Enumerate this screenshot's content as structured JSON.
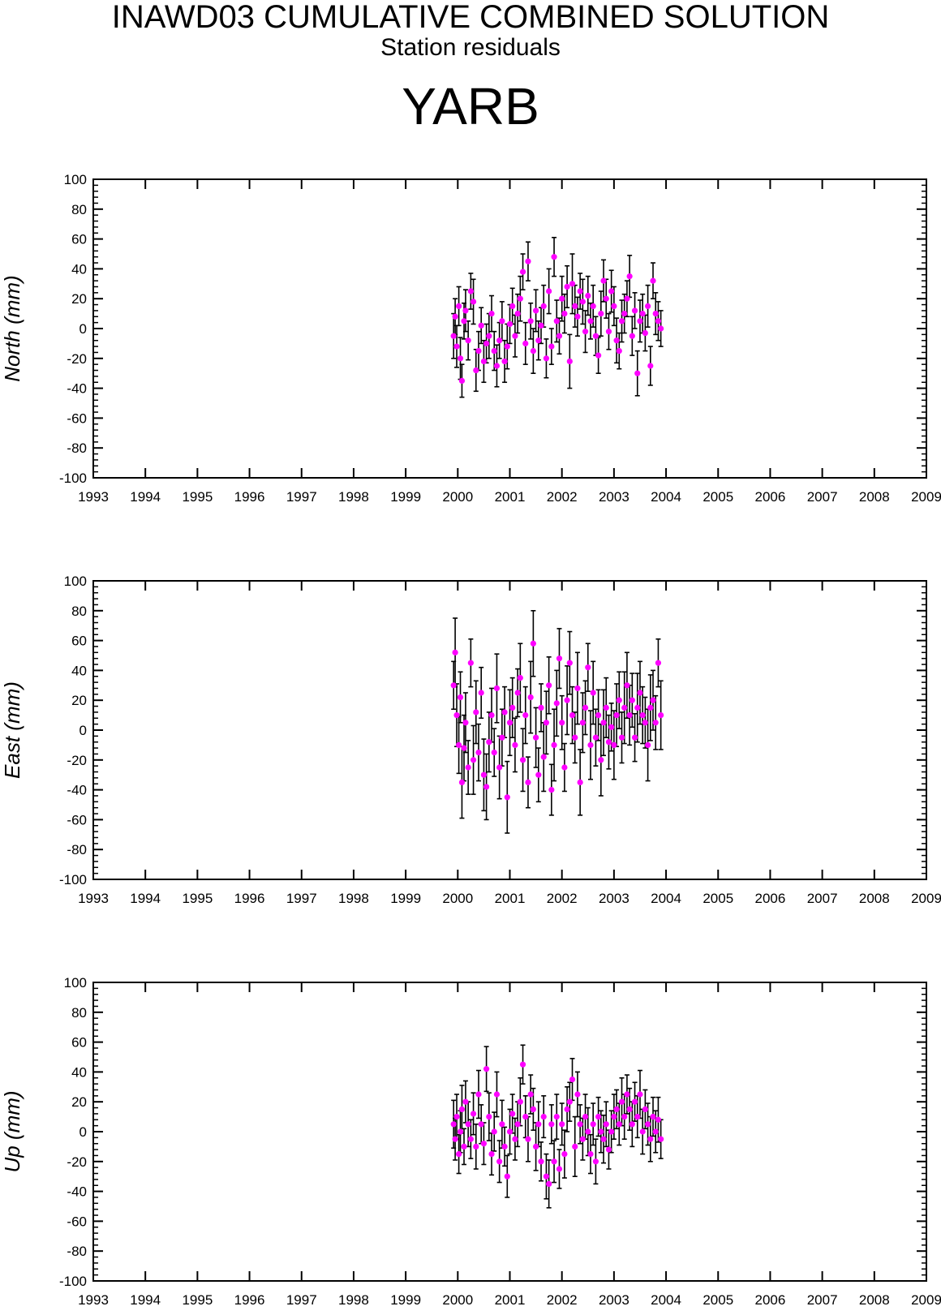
{
  "header": {
    "title": "INAWD03 CUMULATIVE COMBINED SOLUTION",
    "subtitle": "Station residuals",
    "station": "YARB"
  },
  "colors": {
    "point": "#ff00ff",
    "errorbar": "#000000",
    "axis": "#000000"
  },
  "chart_data": [
    {
      "type": "scatter",
      "ylabel": "North (mm)",
      "xlim": [
        1993,
        2009
      ],
      "ylim": [
        -100,
        100
      ],
      "xticks": [
        1993,
        1994,
        1995,
        1996,
        1997,
        1998,
        1999,
        2000,
        2001,
        2002,
        2003,
        2004,
        2005,
        2006,
        2007,
        2008,
        2009
      ],
      "yticks": [
        -100,
        -80,
        -60,
        -40,
        -20,
        0,
        20,
        40,
        60,
        80,
        100
      ],
      "grid": false,
      "series": [
        {
          "x": [
            1999.92,
            1999.95,
            1999.98,
            2000.02,
            2000.05,
            2000.08,
            2000.12,
            2000.15,
            2000.2,
            2000.25,
            2000.3,
            2000.35,
            2000.4,
            2000.45,
            2000.5,
            2000.55,
            2000.6,
            2000.65,
            2000.7,
            2000.75,
            2000.8,
            2000.85,
            2000.9,
            2000.95,
            2001.0,
            2001.05,
            2001.1,
            2001.15,
            2001.2,
            2001.25,
            2001.3,
            2001.35,
            2001.4,
            2001.45,
            2001.5,
            2001.55,
            2001.6,
            2001.65,
            2001.7,
            2001.75,
            2001.8,
            2001.85,
            2001.9,
            2001.95,
            2002.0,
            2002.05,
            2002.1,
            2002.15,
            2002.2,
            2002.25,
            2002.3,
            2002.35,
            2002.4,
            2002.45,
            2002.5,
            2002.55,
            2002.6,
            2002.65,
            2002.7,
            2002.75,
            2002.8,
            2002.85,
            2002.9,
            2002.95,
            2003.0,
            2003.05,
            2003.1,
            2003.15,
            2003.2,
            2003.25,
            2003.3,
            2003.35,
            2003.4,
            2003.45,
            2003.5,
            2003.55,
            2003.6,
            2003.65,
            2003.7,
            2003.75,
            2003.8,
            2003.85,
            2003.9
          ],
          "y": [
            -5,
            8,
            -12,
            15,
            -20,
            -35,
            5,
            12,
            -8,
            25,
            18,
            -28,
            -15,
            2,
            -22,
            -10,
            -5,
            10,
            -15,
            -25,
            -8,
            5,
            -22,
            -12,
            3,
            15,
            -5,
            10,
            20,
            38,
            -10,
            45,
            5,
            -15,
            12,
            -8,
            2,
            15,
            -20,
            25,
            -12,
            48,
            5,
            -5,
            20,
            10,
            28,
            -22,
            30,
            15,
            8,
            25,
            18,
            -2,
            22,
            5,
            15,
            -5,
            -18,
            10,
            32,
            20,
            -2,
            25,
            15,
            -8,
            -15,
            5,
            10,
            20,
            35,
            -5,
            12,
            -30,
            5,
            10,
            -3,
            15,
            -25,
            32,
            10,
            5,
            0
          ],
          "err": [
            15,
            12,
            14,
            13,
            14,
            11,
            12,
            14,
            13,
            12,
            15,
            14,
            13,
            12,
            14,
            13,
            15,
            12,
            13,
            14,
            12,
            13,
            14,
            15,
            13,
            12,
            14,
            13,
            15,
            12,
            14,
            13,
            12,
            15,
            14,
            13,
            12,
            14,
            13,
            15,
            12,
            13,
            14,
            12,
            15,
            13,
            14,
            18,
            20,
            14,
            13,
            12,
            15,
            14,
            13,
            12,
            14,
            13,
            12,
            15,
            14,
            13,
            12,
            14,
            13,
            15,
            12,
            14,
            13,
            12,
            14,
            13,
            12,
            15,
            14,
            13,
            12,
            14,
            13,
            12,
            14,
            13,
            12
          ]
        }
      ]
    },
    {
      "type": "scatter",
      "ylabel": "East (mm)",
      "xlim": [
        1993,
        2009
      ],
      "ylim": [
        -100,
        100
      ],
      "xticks": [
        1993,
        1994,
        1995,
        1996,
        1997,
        1998,
        1999,
        2000,
        2001,
        2002,
        2003,
        2004,
        2005,
        2006,
        2007,
        2008,
        2009
      ],
      "yticks": [
        -100,
        -80,
        -60,
        -40,
        -20,
        0,
        20,
        40,
        60,
        80,
        100
      ],
      "grid": false,
      "series": [
        {
          "x": [
            1999.92,
            1999.95,
            1999.98,
            2000.02,
            2000.05,
            2000.08,
            2000.12,
            2000.15,
            2000.2,
            2000.25,
            2000.3,
            2000.35,
            2000.4,
            2000.45,
            2000.5,
            2000.55,
            2000.6,
            2000.65,
            2000.7,
            2000.75,
            2000.8,
            2000.85,
            2000.9,
            2000.95,
            2001.0,
            2001.05,
            2001.1,
            2001.15,
            2001.2,
            2001.25,
            2001.3,
            2001.35,
            2001.4,
            2001.45,
            2001.5,
            2001.55,
            2001.6,
            2001.65,
            2001.7,
            2001.75,
            2001.8,
            2001.85,
            2001.9,
            2001.95,
            2002.0,
            2002.05,
            2002.1,
            2002.15,
            2002.2,
            2002.25,
            2002.3,
            2002.35,
            2002.4,
            2002.45,
            2002.5,
            2002.55,
            2002.6,
            2002.65,
            2002.7,
            2002.75,
            2002.8,
            2002.85,
            2002.9,
            2002.95,
            2003.0,
            2003.05,
            2003.1,
            2003.15,
            2003.2,
            2003.25,
            2003.3,
            2003.35,
            2003.4,
            2003.45,
            2003.5,
            2003.55,
            2003.6,
            2003.65,
            2003.7,
            2003.75,
            2003.8,
            2003.85,
            2003.9
          ],
          "y": [
            30,
            52,
            10,
            -10,
            22,
            -35,
            -12,
            5,
            -25,
            45,
            -20,
            12,
            -15,
            25,
            -30,
            -38,
            -8,
            10,
            -15,
            28,
            -25,
            -5,
            12,
            -45,
            5,
            15,
            -10,
            25,
            35,
            -20,
            10,
            -35,
            22,
            58,
            -5,
            -30,
            15,
            -18,
            5,
            30,
            -40,
            -10,
            18,
            48,
            5,
            -25,
            20,
            45,
            10,
            -5,
            28,
            -35,
            5,
            15,
            42,
            -10,
            25,
            -5,
            10,
            -20,
            5,
            15,
            -8,
            2,
            -10,
            10,
            20,
            -5,
            15,
            30,
            10,
            20,
            -5,
            15,
            25,
            10,
            5,
            -10,
            15,
            20,
            5,
            45,
            10
          ]
        }
      ]
    },
    {
      "type": "scatter",
      "ylabel": "Up (mm)",
      "xlim": [
        1993,
        2009
      ],
      "ylim": [
        -100,
        100
      ],
      "xticks": [
        1993,
        1994,
        1995,
        1996,
        1997,
        1998,
        1999,
        2000,
        2001,
        2002,
        2003,
        2004,
        2005,
        2006,
        2007,
        2008,
        2009
      ],
      "yticks": [
        -100,
        -80,
        -60,
        -40,
        -20,
        0,
        20,
        40,
        60,
        80,
        100
      ],
      "grid": false,
      "series": [
        {
          "x": [
            1999.92,
            1999.95,
            1999.98,
            2000.02,
            2000.05,
            2000.08,
            2000.12,
            2000.15,
            2000.2,
            2000.25,
            2000.3,
            2000.35,
            2000.4,
            2000.45,
            2000.5,
            2000.55,
            2000.6,
            2000.65,
            2000.7,
            2000.75,
            2000.8,
            2000.85,
            2000.9,
            2000.95,
            2001.0,
            2001.05,
            2001.1,
            2001.15,
            2001.2,
            2001.25,
            2001.3,
            2001.35,
            2001.4,
            2001.45,
            2001.5,
            2001.55,
            2001.6,
            2001.65,
            2001.7,
            2001.75,
            2001.8,
            2001.85,
            2001.9,
            2001.95,
            2002.0,
            2002.05,
            2002.1,
            2002.15,
            2002.2,
            2002.25,
            2002.3,
            2002.35,
            2002.4,
            2002.45,
            2002.5,
            2002.55,
            2002.6,
            2002.65,
            2002.7,
            2002.75,
            2002.8,
            2002.85,
            2002.9,
            2002.95,
            2003.0,
            2003.05,
            2003.1,
            2003.15,
            2003.2,
            2003.25,
            2003.3,
            2003.35,
            2003.4,
            2003.45,
            2003.5,
            2003.55,
            2003.6,
            2003.65,
            2003.7,
            2003.75,
            2003.8,
            2003.85,
            2003.9
          ],
          "y": [
            5,
            -5,
            10,
            -15,
            0,
            15,
            -10,
            20,
            5,
            -5,
            12,
            -10,
            25,
            5,
            -8,
            42,
            10,
            -15,
            0,
            25,
            -20,
            5,
            -10,
            -30,
            0,
            12,
            -5,
            5,
            20,
            45,
            10,
            -5,
            25,
            15,
            -10,
            5,
            -20,
            10,
            -30,
            -35,
            5,
            -20,
            10,
            -25,
            5,
            -15,
            15,
            20,
            35,
            -10,
            25,
            5,
            -5,
            10,
            0,
            -15,
            5,
            -20,
            10,
            0,
            -5,
            5,
            -12,
            0,
            10,
            15,
            5,
            20,
            10,
            25,
            15,
            5,
            20,
            10,
            25,
            0,
            15,
            5,
            -5,
            10,
            0,
            8,
            -5
          ],
          "err": [
            16,
            14,
            15,
            13,
            14,
            16,
            12,
            14,
            15,
            13,
            14,
            15,
            16,
            13,
            14,
            15,
            16,
            14,
            13,
            15,
            14,
            16,
            13,
            14,
            15,
            13,
            14,
            15,
            16,
            13,
            14,
            15,
            13,
            14,
            16,
            15,
            13,
            14,
            15,
            16,
            13,
            14,
            15,
            13,
            14,
            16,
            15,
            13,
            14,
            20,
            15,
            13,
            14,
            15,
            16,
            13,
            14,
            15,
            13,
            14,
            16,
            15,
            13,
            14,
            15,
            13,
            14,
            16,
            15,
            13,
            14,
            15,
            13,
            14,
            16,
            15,
            13,
            14,
            15,
            13,
            14,
            15,
            13
          ]
        }
      ]
    }
  ]
}
